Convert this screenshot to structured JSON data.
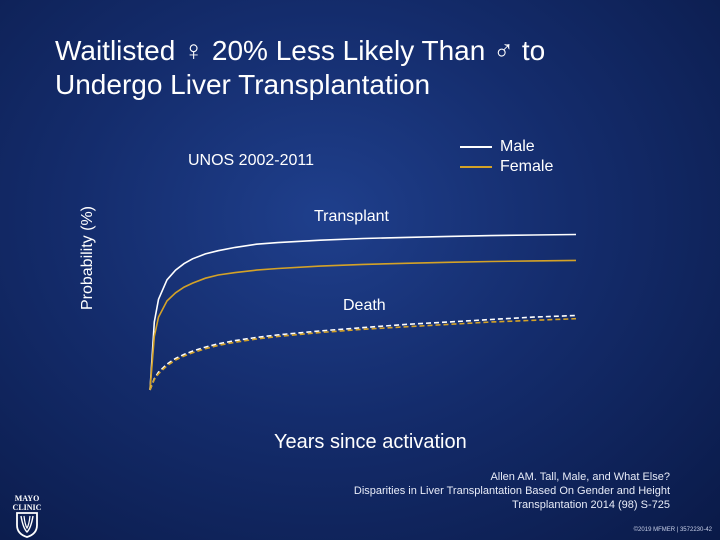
{
  "slide": {
    "title_line1": "Waitlisted ♀ 20% Less Likely Than ♂ to",
    "title_line2": "Undergo Liver Transplantation",
    "citation_line1": "Allen AM. Tall, Male, and What Else?",
    "citation_line2": "Disparities in Liver Transplantation Based On Gender and Height",
    "citation_line3": "Transplantation 2014 (98) S-725",
    "copyright": "©2019 MFMER | 3572230-42",
    "logo_text": "MAYO CLINIC"
  },
  "chart_data": {
    "type": "line",
    "subtitle": "UNOS 2002-2011",
    "xlabel": "Years since activation",
    "ylabel": "Probability (%)",
    "x_ticks_shown": false,
    "y_ticks_shown": false,
    "grid": false,
    "legend_placement": "top-right",
    "legend": [
      {
        "name": "Male",
        "color": "#ffffff"
      },
      {
        "name": "Female",
        "color": "#d4a227"
      }
    ],
    "annotations": {
      "transplant": "Transplant",
      "death": "Death"
    },
    "x_relative": [
      0,
      0.01,
      0.02,
      0.04,
      0.06,
      0.08,
      0.1,
      0.13,
      0.16,
      0.2,
      0.25,
      0.3,
      0.4,
      0.5,
      0.6,
      0.7,
      0.8,
      0.9,
      1.0
    ],
    "series": [
      {
        "name": "Male",
        "outcome": "Transplant",
        "style": "solid",
        "color": "#ffffff",
        "values": [
          0,
          0.42,
          0.56,
          0.68,
          0.74,
          0.78,
          0.81,
          0.84,
          0.86,
          0.88,
          0.9,
          0.91,
          0.925,
          0.935,
          0.942,
          0.948,
          0.953,
          0.957,
          0.96
        ]
      },
      {
        "name": "Female",
        "outcome": "Transplant",
        "style": "solid",
        "color": "#d4a227",
        "values": [
          0,
          0.33,
          0.45,
          0.55,
          0.6,
          0.635,
          0.66,
          0.69,
          0.71,
          0.725,
          0.74,
          0.75,
          0.765,
          0.775,
          0.782,
          0.788,
          0.793,
          0.797,
          0.8
        ]
      },
      {
        "name": "Male",
        "outcome": "Death",
        "style": "dashed",
        "color": "#ffffff",
        "values": [
          0,
          0.07,
          0.11,
          0.16,
          0.195,
          0.22,
          0.24,
          0.265,
          0.285,
          0.305,
          0.325,
          0.34,
          0.365,
          0.385,
          0.405,
          0.42,
          0.435,
          0.45,
          0.46
        ]
      },
      {
        "name": "Female",
        "outcome": "Death",
        "style": "dashed",
        "color": "#d4a227",
        "values": [
          0,
          0.065,
          0.1,
          0.15,
          0.185,
          0.21,
          0.23,
          0.255,
          0.275,
          0.295,
          0.315,
          0.33,
          0.355,
          0.375,
          0.39,
          0.405,
          0.42,
          0.43,
          0.44
        ]
      }
    ]
  }
}
